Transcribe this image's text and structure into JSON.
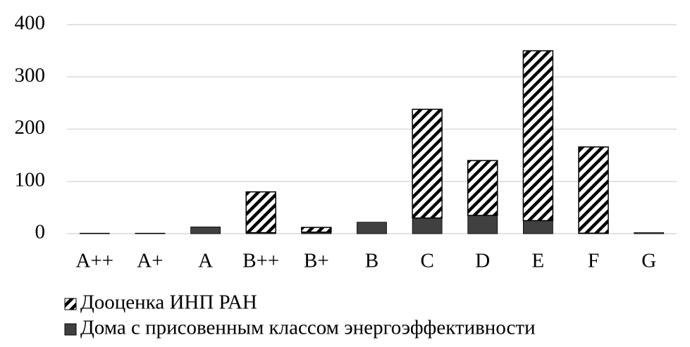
{
  "chart_data": {
    "type": "stacked-bar",
    "categories": [
      "A++",
      "A+",
      "A",
      "B++",
      "B+",
      "B",
      "C",
      "D",
      "E",
      "F",
      "G"
    ],
    "series": [
      {
        "name": "Дома с присовенным классом энергоэффективности",
        "color": "#404040",
        "pattern": "solid",
        "values": [
          1,
          1,
          13,
          2,
          3,
          22,
          30,
          35,
          25,
          1,
          2
        ]
      },
      {
        "name": "Дооценка ИНП РАН",
        "color": "#000000",
        "pattern": "hatch",
        "values": [
          0,
          0,
          0,
          78,
          9,
          0,
          208,
          105,
          325,
          165,
          0
        ]
      }
    ],
    "ylim": [
      0,
      400
    ],
    "yticks": [
      0,
      100,
      200,
      300,
      400
    ],
    "grid": true,
    "legend": "bottom"
  }
}
